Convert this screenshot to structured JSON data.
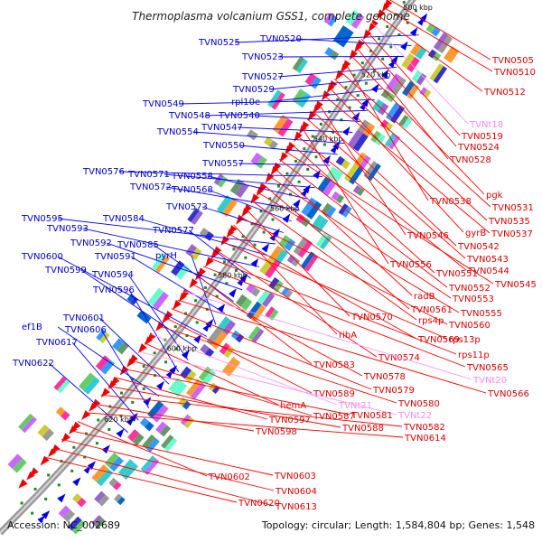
{
  "title": "Thermoplasma volcanium GSS1, complete genome",
  "footer": {
    "accession": "Accession: NC_002689",
    "summary": "Topology: circular; Length: 1,584,804 bp; Genes: 1,548"
  },
  "kbp_marks": [
    "500 kbp",
    "520 kbp",
    "540 kbp",
    "560 kbp",
    "580 kbp",
    "600 kbp",
    "620 kbp"
  ],
  "colors": {
    "outer_label": "#0000ff",
    "inner_label": "#ff0000",
    "rna_label": "#ff99ff",
    "ring": "#888888"
  },
  "outer_genes": [
    "TVN0525",
    "TVN0520",
    "TVN0523",
    "TVN0527",
    "TVN0529",
    "rpl10e",
    "TVN0549",
    "TVN0548",
    "TVN0540",
    "TVN0547",
    "TVN0554",
    "TVN0550",
    "TVN0557",
    "TVN0576",
    "TVN0571",
    "TVN0558",
    "TVN0572",
    "TVN0568",
    "TVN0573",
    "TVN0595",
    "TVN0584",
    "TVN0593",
    "TVN0577",
    "TVN0592",
    "TVN0585",
    "TVN0591",
    "pyrH",
    "TVN0600",
    "TVN0599",
    "TVN0594",
    "TVN0596",
    "TVN0601",
    "ef1B",
    "TVN0606",
    "TVN0617",
    "TVN0622"
  ],
  "inner_genes": [
    "TVN0505",
    "TVN0510",
    "TVN0512",
    "TVNt18",
    "TVN0519",
    "TVN0524",
    "TVN0528",
    "pgk",
    "TVN0538",
    "TVN0531",
    "TVN0535",
    "gyrB",
    "TVN0537",
    "TVN0546",
    "TVN0542",
    "TVN0543",
    "TVN0556",
    "TVN0544",
    "TVN0551",
    "TVN0545",
    "TVN0552",
    "radB",
    "TVN0553",
    "TVN0561",
    "TVN0555",
    "rps4p",
    "TVN0570",
    "TVN0560",
    "ribA",
    "TVN0569",
    "rps13p",
    "TVN0574",
    "rps11p",
    "TVN0565",
    "TVN0583",
    "TVN0578",
    "TVNt20",
    "TVN0566",
    "TVN0579",
    "TVN0589",
    "TVN0580",
    "TVNt21",
    "hemA",
    "TVNt22",
    "TVN0587",
    "TVN0581",
    "TVN0597",
    "TVN0588",
    "TVN0582",
    "TVN0598",
    "TVN0614",
    "TVN0602",
    "TVN0603",
    "TVN0604",
    "TVN0613",
    "TVN0620"
  ]
}
